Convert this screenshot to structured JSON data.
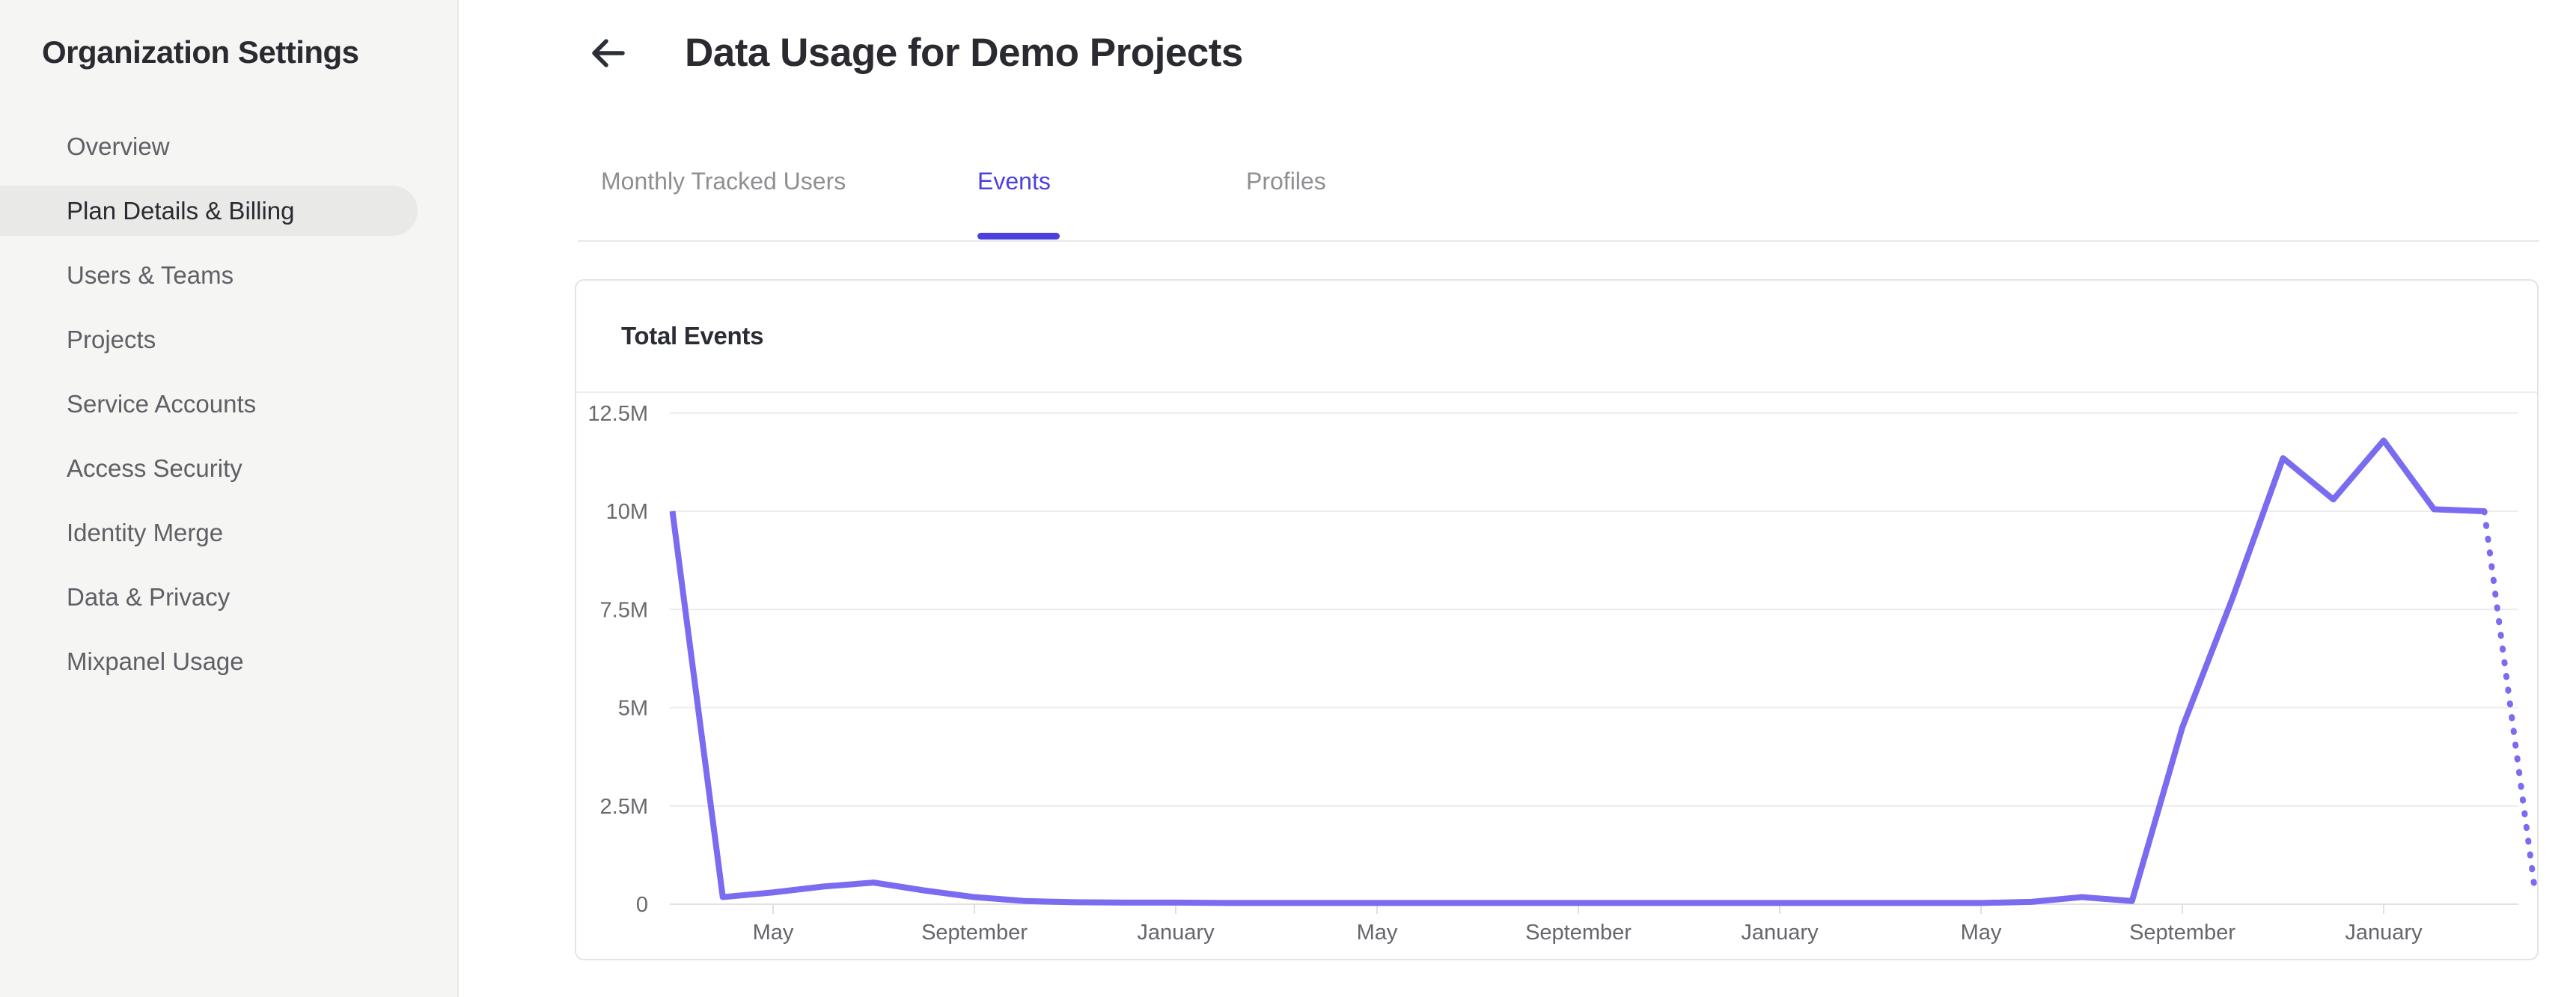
{
  "sidebar": {
    "title": "Organization Settings",
    "items": [
      {
        "label": "Overview",
        "active": false
      },
      {
        "label": "Plan Details & Billing",
        "active": true
      },
      {
        "label": "Users & Teams",
        "active": false
      },
      {
        "label": "Projects",
        "active": false
      },
      {
        "label": "Service Accounts",
        "active": false
      },
      {
        "label": "Access Security",
        "active": false
      },
      {
        "label": "Identity Merge",
        "active": false
      },
      {
        "label": "Data & Privacy",
        "active": false
      },
      {
        "label": "Mixpanel Usage",
        "active": false
      }
    ]
  },
  "header": {
    "title": "Data Usage for Demo Projects",
    "back_icon": "arrow-left-icon"
  },
  "tabs": {
    "items": [
      {
        "label": "Monthly Tracked Users",
        "active": false
      },
      {
        "label": "Events",
        "active": true
      },
      {
        "label": "Profiles",
        "active": false
      }
    ]
  },
  "card": {
    "title": "Total Events"
  },
  "colors": {
    "accent_tab": "#4c40df",
    "chart_line": "#7a6cf0",
    "sidebar_bg": "#f5f5f4",
    "active_item_bg": "#e9e9e8",
    "gridline": "#ececec",
    "text_dark": "#2a2a31",
    "text_gray": "#5f5f66",
    "axis_label": "#66666c"
  },
  "chart_data": {
    "type": "line",
    "title": "Total Events",
    "ylabel": "",
    "xlabel": "",
    "ylim": [
      0,
      12.5
    ],
    "grid": true,
    "legend": "none",
    "y_ticks": [
      {
        "label": "12.5M",
        "value": 12.5
      },
      {
        "label": "10M",
        "value": 10
      },
      {
        "label": "7.5M",
        "value": 7.5
      },
      {
        "label": "5M",
        "value": 5
      },
      {
        "label": "2.5M",
        "value": 2.5
      },
      {
        "label": "0",
        "value": 0
      }
    ],
    "x_tick_labels": [
      "May",
      "September",
      "January",
      "May",
      "September",
      "January",
      "May",
      "September",
      "January"
    ],
    "x_tick_month_indices": [
      2,
      6,
      10,
      14,
      18,
      22,
      26,
      30,
      34
    ],
    "series": [
      {
        "name": "Total Events",
        "color": "#7a6cf0",
        "values_millions": [
          10,
          0.18,
          0.3,
          0.45,
          0.55,
          0.35,
          0.18,
          0.08,
          0.05,
          0.04,
          0.04,
          0.03,
          0.03,
          0.03,
          0.03,
          0.03,
          0.03,
          0.03,
          0.03,
          0.03,
          0.03,
          0.03,
          0.03,
          0.03,
          0.03,
          0.03,
          0.03,
          0.06,
          0.18,
          0.08,
          4.5,
          7.8,
          11.35,
          10.3,
          11.8,
          10.05,
          10.0,
          0.4
        ],
        "dotted_from_index": 36,
        "note_dotted_segment": "final partial-month value shown as dotted projection down to ~0.4M"
      }
    ]
  }
}
